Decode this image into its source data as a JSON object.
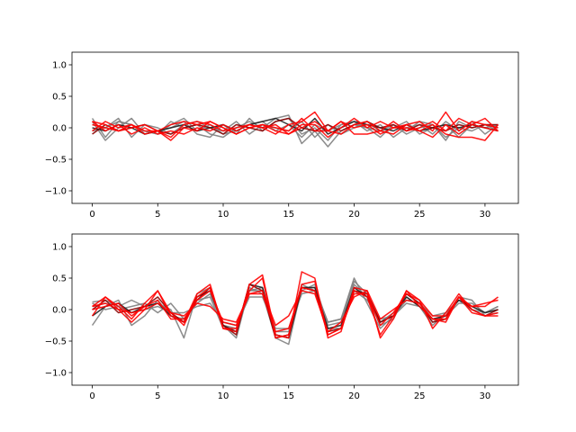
{
  "chart_data": [
    {
      "type": "line",
      "title": "",
      "xlabel": "",
      "ylabel": "",
      "xlim": [
        -1.55,
        32.55
      ],
      "ylim": [
        -1.2,
        1.2
      ],
      "x_ticks": [
        0,
        5,
        10,
        15,
        20,
        25,
        30
      ],
      "y_ticks": [
        -1.0,
        -0.5,
        0.0,
        0.5,
        1.0
      ],
      "x_tick_labels": [
        "0",
        "5",
        "10",
        "15",
        "20",
        "25",
        "30"
      ],
      "y_tick_labels": [
        "−1.0",
        "−0.5",
        "0.0",
        "0.5",
        "1.0"
      ],
      "grid": false,
      "x": [
        0,
        1,
        2,
        3,
        4,
        5,
        6,
        7,
        8,
        9,
        10,
        11,
        12,
        13,
        14,
        15,
        16,
        17,
        18,
        19,
        20,
        21,
        22,
        23,
        24,
        25,
        26,
        27,
        28,
        29,
        30,
        31
      ],
      "series": [
        {
          "color": "#808080",
          "values": [
            0.15,
            -0.15,
            0.1,
            0.05,
            -0.05,
            -0.1,
            0.1,
            0.0,
            0.05,
            -0.1,
            -0.15,
            0.0,
            0.1,
            0.0,
            0.15,
            0.2,
            -0.25,
            -0.05,
            -0.3,
            -0.05,
            0.05,
            0.0,
            -0.15,
            0.05,
            -0.05,
            0.1,
            0.05,
            -0.2,
            0.1,
            0.0,
            0.05,
            -0.05
          ]
        },
        {
          "color": "#808080",
          "values": [
            0.1,
            -0.2,
            0.0,
            0.15,
            -0.1,
            -0.05,
            0.0,
            0.1,
            -0.1,
            -0.15,
            0.05,
            -0.1,
            0.15,
            -0.05,
            0.1,
            0.15,
            -0.1,
            0.0,
            -0.2,
            0.05,
            0.1,
            -0.05,
            0.05,
            -0.15,
            0.0,
            0.05,
            -0.1,
            0.1,
            -0.05,
            0.1,
            -0.1,
            0.05
          ]
        },
        {
          "color": "#808080",
          "values": [
            -0.05,
            0.0,
            0.15,
            -0.15,
            0.05,
            0.0,
            -0.1,
            0.05,
            0.1,
            0.0,
            -0.05,
            0.1,
            -0.1,
            0.05,
            0.0,
            -0.05,
            0.1,
            -0.15,
            0.05,
            -0.1,
            0.0,
            0.1,
            -0.05,
            0.0,
            0.1,
            -0.1,
            0.0,
            0.05,
            -0.15,
            0.05,
            0.0,
            0.05
          ]
        },
        {
          "color": "#808080",
          "values": [
            0.05,
            0.0,
            0.1,
            0.05,
            -0.05,
            -0.1,
            0.05,
            0.15,
            -0.05,
            0.05,
            -0.1,
            -0.05,
            0.05,
            0.1,
            -0.05,
            0.05,
            -0.15,
            0.05,
            -0.05,
            0.05,
            0.1,
            0.0,
            -0.05,
            0.05,
            -0.1,
            0.0,
            0.05,
            -0.15,
            0.0,
            -0.05,
            0.05,
            0.0
          ]
        },
        {
          "color": "#202020",
          "values": [
            0.0,
            -0.05,
            0.05,
            0.0,
            -0.1,
            -0.05,
            0.0,
            0.05,
            -0.05,
            0.0,
            0.05,
            -0.05,
            0.05,
            0.1,
            0.15,
            0.05,
            -0.05,
            0.15,
            -0.1,
            0.0,
            0.1,
            0.05,
            0.0,
            -0.05,
            0.05,
            -0.05,
            0.0,
            0.05,
            0.0,
            0.05,
            0.0,
            -0.05
          ]
        },
        {
          "color": "#8b0000",
          "values": [
            -0.1,
            0.05,
            -0.05,
            0.0,
            0.05,
            -0.05,
            -0.1,
            0.0,
            0.05,
            0.0,
            -0.1,
            0.05,
            0.0,
            -0.05,
            0.1,
            0.15,
            0.0,
            -0.05,
            0.05,
            -0.05,
            0.05,
            0.1,
            0.0,
            0.05,
            -0.05,
            0.05,
            0.0,
            -0.05,
            0.05,
            0.0,
            0.05,
            0.05
          ]
        },
        {
          "color": "#ff0000",
          "values": [
            0.1,
            0.05,
            -0.05,
            0.0,
            0.05,
            -0.05,
            -0.15,
            0.05,
            0.1,
            0.05,
            -0.05,
            0.0,
            0.05,
            0.0,
            -0.1,
            0.05,
            0.1,
            0.25,
            -0.05,
            0.1,
            0.0,
            0.05,
            -0.1,
            0.0,
            0.05,
            0.1,
            -0.05,
            0.25,
            -0.05,
            0.1,
            0.05,
            0.0
          ]
        },
        {
          "color": "#ff0000",
          "values": [
            0.05,
            0.0,
            -0.05,
            0.05,
            -0.1,
            -0.05,
            0.05,
            0.1,
            0.05,
            0.1,
            0.0,
            -0.1,
            0.0,
            0.05,
            -0.05,
            -0.1,
            0.05,
            0.05,
            -0.15,
            0.0,
            0.15,
            0.0,
            0.1,
            0.0,
            0.0,
            -0.05,
            -0.15,
            0.05,
            -0.1,
            0.05,
            0.0,
            -0.05
          ]
        },
        {
          "color": "#ff0000",
          "values": [
            -0.05,
            0.1,
            0.0,
            0.05,
            -0.05,
            -0.05,
            -0.2,
            0.0,
            -0.05,
            0.1,
            0.0,
            -0.1,
            0.0,
            0.05,
            0.0,
            -0.05,
            0.15,
            -0.05,
            -0.05,
            -0.1,
            0.05,
            0.1,
            -0.05,
            -0.1,
            0.05,
            -0.05,
            0.05,
            -0.1,
            -0.15,
            -0.15,
            -0.2,
            0.05
          ]
        },
        {
          "color": "#ff0000",
          "values": [
            0.1,
            -0.05,
            0.05,
            -0.1,
            0.0,
            -0.1,
            -0.05,
            -0.1,
            0.0,
            -0.05,
            0.05,
            -0.05,
            0.05,
            0.0,
            0.05,
            -0.1,
            0.0,
            0.1,
            -0.05,
            0.1,
            -0.1,
            -0.1,
            -0.05,
            0.1,
            -0.05,
            0.0,
            0.1,
            -0.05,
            0.15,
            0.05,
            0.15,
            -0.05
          ]
        }
      ]
    },
    {
      "type": "line",
      "title": "",
      "xlabel": "",
      "ylabel": "",
      "xlim": [
        -1.55,
        32.55
      ],
      "ylim": [
        -1.2,
        1.2
      ],
      "x_ticks": [
        0,
        5,
        10,
        15,
        20,
        25,
        30
      ],
      "y_ticks": [
        -1.0,
        -0.5,
        0.0,
        0.5,
        1.0
      ],
      "x_tick_labels": [
        "0",
        "5",
        "10",
        "15",
        "20",
        "25",
        "30"
      ],
      "y_tick_labels": [
        "−1.0",
        "−0.5",
        "0.0",
        "0.5",
        "1.0"
      ],
      "grid": false,
      "x": [
        0,
        1,
        2,
        3,
        4,
        5,
        6,
        7,
        8,
        9,
        10,
        11,
        12,
        13,
        14,
        15,
        16,
        17,
        18,
        19,
        20,
        21,
        22,
        23,
        24,
        25,
        26,
        27,
        28,
        29,
        30,
        31
      ],
      "series": [
        {
          "color": "#808080",
          "values": [
            0.12,
            0.15,
            0.05,
            0.15,
            0.05,
            0.1,
            0.0,
            -0.45,
            0.25,
            0.35,
            -0.25,
            -0.45,
            0.35,
            0.25,
            -0.45,
            -0.55,
            0.35,
            0.35,
            -0.2,
            -0.15,
            0.5,
            0.1,
            -0.3,
            -0.1,
            0.1,
            0.05,
            -0.25,
            -0.05,
            0.15,
            0.0,
            -0.05,
            0.0
          ]
        },
        {
          "color": "#808080",
          "values": [
            -0.25,
            0.05,
            0.15,
            -0.25,
            -0.1,
            0.15,
            -0.1,
            -0.15,
            0.1,
            0.25,
            -0.25,
            -0.3,
            0.3,
            0.3,
            -0.35,
            -0.35,
            0.4,
            0.3,
            -0.3,
            -0.3,
            0.4,
            0.2,
            -0.25,
            -0.15,
            0.25,
            0.1,
            -0.15,
            -0.1,
            0.2,
            0.15,
            -0.1,
            -0.05
          ]
        },
        {
          "color": "#808080",
          "values": [
            0.05,
            0.1,
            0.0,
            0.05,
            0.1,
            -0.05,
            0.1,
            -0.15,
            0.15,
            0.2,
            -0.3,
            -0.35,
            0.3,
            0.35,
            -0.4,
            -0.45,
            0.3,
            0.4,
            -0.25,
            -0.2,
            0.45,
            0.25,
            -0.2,
            -0.05,
            0.2,
            0.05,
            -0.2,
            -0.1,
            0.1,
            0.1,
            -0.05,
            0.05
          ]
        },
        {
          "color": "#808080",
          "values": [
            0.1,
            0.0,
            0.05,
            -0.05,
            0.0,
            0.05,
            -0.05,
            -0.05,
            0.05,
            0.1,
            -0.2,
            -0.25,
            0.2,
            0.2,
            -0.3,
            -0.3,
            0.25,
            0.3,
            -0.2,
            -0.15,
            0.3,
            0.15,
            -0.15,
            -0.1,
            0.15,
            0.1,
            -0.1,
            -0.05,
            0.15,
            0.05,
            -0.05,
            0.05
          ]
        },
        {
          "color": "#202020",
          "values": [
            -0.1,
            0.05,
            0.1,
            -0.05,
            0.05,
            0.1,
            -0.1,
            -0.2,
            0.2,
            0.3,
            -0.25,
            -0.35,
            0.4,
            0.35,
            -0.4,
            -0.45,
            0.35,
            0.35,
            -0.3,
            -0.25,
            0.35,
            0.2,
            -0.2,
            -0.1,
            0.2,
            0.05,
            -0.15,
            -0.1,
            0.15,
            0.05,
            -0.05,
            0.0
          ]
        },
        {
          "color": "#8b0000",
          "values": [
            0.0,
            0.15,
            -0.05,
            0.0,
            0.05,
            0.2,
            -0.05,
            -0.2,
            0.15,
            0.35,
            -0.25,
            -0.4,
            0.4,
            0.3,
            -0.45,
            -0.4,
            0.35,
            0.3,
            -0.35,
            -0.3,
            0.3,
            0.25,
            -0.2,
            -0.1,
            0.25,
            0.1,
            -0.2,
            -0.15,
            0.2,
            0.0,
            -0.1,
            0.0
          ]
        },
        {
          "color": "#ff0000",
          "values": [
            0.05,
            0.2,
            0.0,
            -0.2,
            0.0,
            0.3,
            -0.1,
            -0.2,
            0.25,
            0.4,
            -0.3,
            -0.35,
            0.4,
            0.55,
            -0.4,
            -0.45,
            0.6,
            0.5,
            -0.45,
            -0.35,
            0.35,
            0.3,
            -0.45,
            -0.15,
            0.3,
            0.15,
            -0.3,
            -0.05,
            0.25,
            0.0,
            -0.1,
            -0.1
          ]
        },
        {
          "color": "#ff0000",
          "values": [
            -0.1,
            0.2,
            0.05,
            -0.15,
            0.1,
            0.3,
            -0.05,
            -0.25,
            0.2,
            0.35,
            -0.3,
            -0.3,
            0.3,
            0.5,
            -0.45,
            -0.4,
            0.4,
            0.45,
            -0.4,
            -0.3,
            0.3,
            0.2,
            -0.4,
            -0.1,
            0.3,
            0.05,
            -0.15,
            -0.2,
            0.2,
            -0.05,
            -0.1,
            -0.05
          ]
        },
        {
          "color": "#ff0000",
          "values": [
            0.0,
            0.05,
            0.1,
            -0.1,
            0.05,
            0.15,
            -0.15,
            -0.15,
            0.15,
            0.3,
            -0.2,
            -0.25,
            0.25,
            0.25,
            -0.35,
            -0.3,
            0.35,
            0.3,
            -0.4,
            -0.3,
            0.25,
            0.25,
            -0.25,
            -0.05,
            0.25,
            0.15,
            -0.1,
            -0.1,
            0.2,
            0.05,
            0.1,
            0.15
          ]
        },
        {
          "color": "#ff0000",
          "values": [
            0.05,
            0.1,
            0.0,
            -0.05,
            0.0,
            0.1,
            -0.05,
            -0.1,
            0.1,
            0.05,
            -0.15,
            -0.2,
            0.25,
            0.3,
            -0.25,
            -0.1,
            0.3,
            0.25,
            -0.35,
            -0.2,
            0.2,
            0.3,
            -0.15,
            0.0,
            0.15,
            0.1,
            -0.15,
            -0.15,
            0.2,
            0.05,
            0.05,
            0.2
          ]
        }
      ]
    }
  ]
}
